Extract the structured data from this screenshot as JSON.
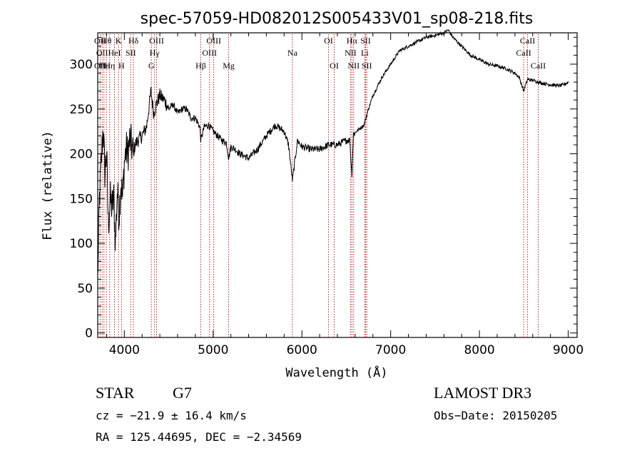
{
  "chart_data": {
    "type": "line",
    "title": "spec-57059-HD082012S005433V01_sp08-218.fits",
    "xlabel": "Wavelength (Å)",
    "ylabel": "Flux (relative)",
    "xlim": [
      3700,
      9100
    ],
    "ylim": [
      -5,
      335
    ],
    "xticks": [
      4000,
      5000,
      6000,
      7000,
      8000,
      9000
    ],
    "yticks": [
      0,
      50,
      100,
      150,
      200,
      250,
      300
    ],
    "grid": false,
    "line_color": "#000000",
    "marker_color": "#b22222",
    "series": [
      {
        "name": "flux",
        "x": [
          3700,
          3720,
          3740,
          3760,
          3780,
          3800,
          3820,
          3840,
          3860,
          3880,
          3900,
          3920,
          3940,
          3960,
          3980,
          4000,
          4020,
          4040,
          4060,
          4080,
          4100,
          4120,
          4150,
          4200,
          4250,
          4300,
          4330,
          4360,
          4400,
          4450,
          4500,
          4550,
          4600,
          4650,
          4700,
          4750,
          4800,
          4850,
          4861,
          4900,
          4950,
          5000,
          5050,
          5100,
          5150,
          5175,
          5200,
          5250,
          5300,
          5400,
          5500,
          5600,
          5700,
          5800,
          5850,
          5893,
          5950,
          6000,
          6100,
          6200,
          6300,
          6400,
          6500,
          6540,
          6563,
          6580,
          6650,
          6700,
          6750,
          6800,
          6850,
          6900,
          7000,
          7100,
          7200,
          7300,
          7400,
          7500,
          7600,
          7650,
          7700,
          7800,
          7900,
          8000,
          8100,
          8200,
          8300,
          8400,
          8450,
          8498,
          8542,
          8600,
          8662,
          8700,
          8800,
          8900,
          8950,
          9000
        ],
        "y": [
          60,
          150,
          190,
          230,
          180,
          200,
          120,
          150,
          140,
          150,
          100,
          160,
          130,
          170,
          150,
          190,
          205,
          200,
          215,
          210,
          200,
          210,
          215,
          220,
          230,
          270,
          245,
          255,
          265,
          260,
          250,
          255,
          245,
          250,
          250,
          240,
          240,
          230,
          215,
          230,
          232,
          225,
          220,
          215,
          212,
          195,
          208,
          205,
          200,
          195,
          205,
          220,
          232,
          225,
          210,
          170,
          215,
          208,
          205,
          205,
          210,
          210,
          215,
          215,
          175,
          222,
          228,
          232,
          250,
          265,
          275,
          285,
          300,
          315,
          320,
          325,
          330,
          332,
          335,
          338,
          330,
          320,
          310,
          305,
          300,
          298,
          295,
          290,
          285,
          270,
          283,
          282,
          280,
          279,
          277,
          276,
          277,
          280
        ]
      }
    ],
    "line_markers": [
      {
        "wave": 3727,
        "top": "OII",
        "mid": "",
        "bot": "OII"
      },
      {
        "wave": 3750,
        "top": "",
        "mid": "OII",
        "bot": ""
      },
      {
        "wave": 3770,
        "top": "",
        "mid": "",
        "bot": "Hε"
      },
      {
        "wave": 3797,
        "top": "Hθ",
        "mid": "",
        "bot": ""
      },
      {
        "wave": 3835,
        "top": "",
        "mid": "",
        "bot": "Hη"
      },
      {
        "wave": 3889,
        "top": "",
        "mid": "HeI",
        "bot": ""
      },
      {
        "wave": 3934,
        "top": "K",
        "mid": "",
        "bot": ""
      },
      {
        "wave": 3968,
        "top": "",
        "mid": "",
        "bot": "H"
      },
      {
        "wave": 4072,
        "top": "",
        "mid": "SII",
        "bot": ""
      },
      {
        "wave": 4102,
        "top": "Hδ",
        "mid": "",
        "bot": ""
      },
      {
        "wave": 4304,
        "top": "",
        "mid": "",
        "bot": "G"
      },
      {
        "wave": 4340,
        "top": "",
        "mid": "Hγ",
        "bot": ""
      },
      {
        "wave": 4363,
        "top": "OIII",
        "mid": "",
        "bot": ""
      },
      {
        "wave": 4861,
        "top": "",
        "mid": "",
        "bot": "Hβ"
      },
      {
        "wave": 4959,
        "top": "",
        "mid": "OIII",
        "bot": ""
      },
      {
        "wave": 5007,
        "top": "OIII",
        "mid": "",
        "bot": ""
      },
      {
        "wave": 5175,
        "top": "",
        "mid": "",
        "bot": "Mg"
      },
      {
        "wave": 5893,
        "top": "",
        "mid": "Na",
        "bot": ""
      },
      {
        "wave": 6300,
        "top": "OI",
        "mid": "",
        "bot": ""
      },
      {
        "wave": 6364,
        "top": "",
        "mid": "",
        "bot": "OI"
      },
      {
        "wave": 6548,
        "top": "",
        "mid": "NII",
        "bot": ""
      },
      {
        "wave": 6563,
        "top": "Hα",
        "mid": "",
        "bot": ""
      },
      {
        "wave": 6583,
        "top": "",
        "mid": "",
        "bot": "NII"
      },
      {
        "wave": 6708,
        "top": "",
        "mid": "Li",
        "bot": ""
      },
      {
        "wave": 6717,
        "top": "SII",
        "mid": "",
        "bot": ""
      },
      {
        "wave": 6731,
        "top": "",
        "mid": "",
        "bot": "SII"
      },
      {
        "wave": 8498,
        "top": "",
        "mid": "CaII",
        "bot": ""
      },
      {
        "wave": 8542,
        "top": "CaII",
        "mid": "",
        "bot": ""
      },
      {
        "wave": 8662,
        "top": "",
        "mid": "",
        "bot": "CaII"
      }
    ]
  },
  "info": {
    "object_class": "STAR",
    "subclass": "G7",
    "survey": "LAMOST DR3",
    "redshift_line": "cz = −21.9 ± 16.4 km/s",
    "obs_date_line": "Obs−Date: 20150205",
    "coords_line": "RA = 125.44695, DEC =  −2.34569"
  }
}
